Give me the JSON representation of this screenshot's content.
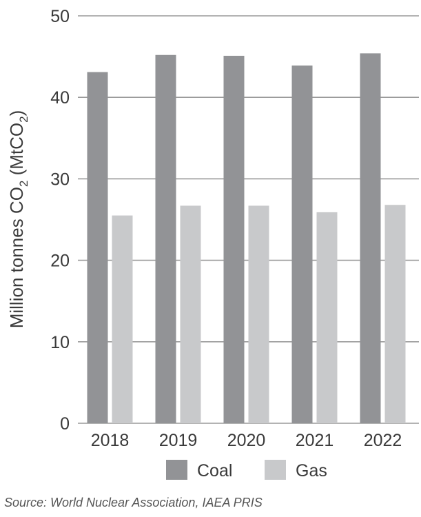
{
  "chart_data": {
    "type": "bar",
    "categories": [
      "2018",
      "2019",
      "2020",
      "2021",
      "2022"
    ],
    "series": [
      {
        "name": "Coal",
        "values": [
          43.1,
          45.2,
          45.1,
          43.9,
          45.4
        ],
        "color": "#929396"
      },
      {
        "name": "Gas",
        "values": [
          25.5,
          26.7,
          26.7,
          25.9,
          26.8
        ],
        "color": "#c8c9cb"
      }
    ],
    "ylabel_main": "Million tonnes CO",
    "ylabel_sub": "2",
    "ylabel_paren_open": " (MtCO",
    "ylabel_paren_sub": "2",
    "ylabel_close": ")",
    "ylim": [
      0,
      50
    ],
    "yticks": [
      "0",
      "10",
      "20",
      "30",
      "40",
      "50"
    ],
    "grid": true,
    "legend_position": "bottom"
  },
  "source": "Source: World Nuclear Association, IAEA PRIS"
}
